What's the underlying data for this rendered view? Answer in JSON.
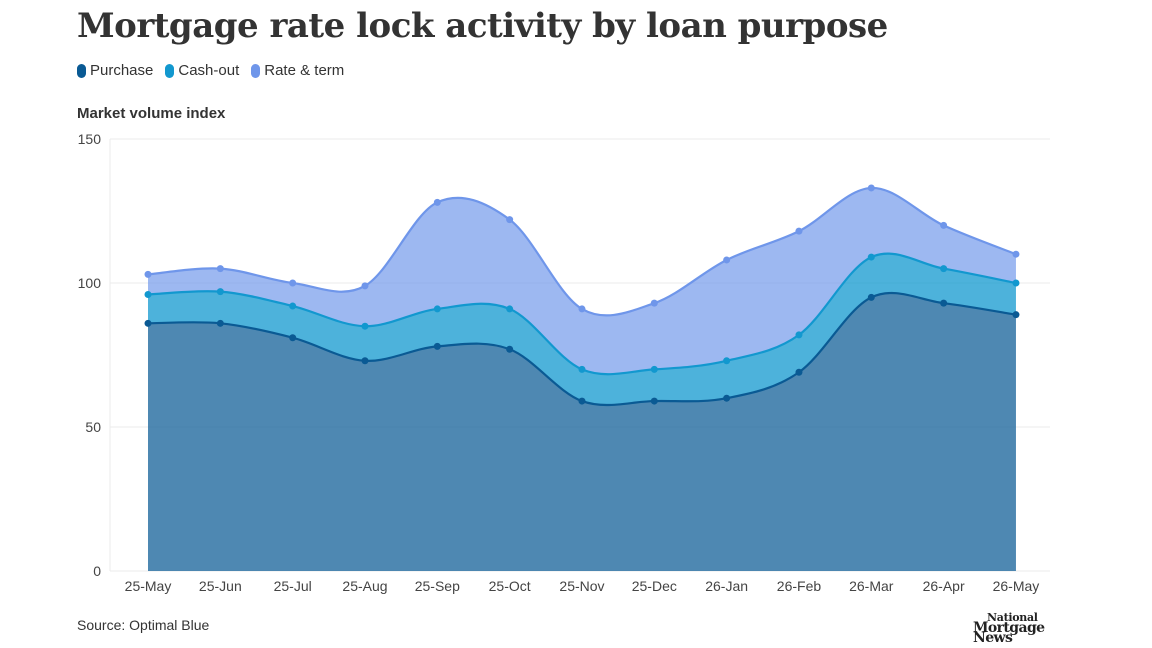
{
  "title": "Mortgage rate lock activity by loan purpose",
  "source": "Source: Optimal Blue",
  "logo": {
    "line1": "National",
    "line2": "Mortgage News"
  },
  "colors": {
    "purchase": "#0a5a94",
    "cashout": "#1298cf",
    "rateterm": "#6f96ea"
  },
  "chart_data": {
    "type": "area",
    "stacked": true,
    "ylabel": "Market volume index",
    "xlabel": "",
    "ylim": [
      0,
      150
    ],
    "yticks": [
      0,
      50,
      100,
      150
    ],
    "grid": true,
    "legend_position": "top-left",
    "categories": [
      "25-May",
      "25-Jun",
      "25-Jul",
      "25-Aug",
      "25-Sep",
      "25-Oct",
      "25-Nov",
      "25-Dec",
      "26-Jan",
      "26-Feb",
      "26-Mar",
      "26-Apr",
      "26-May"
    ],
    "series": [
      {
        "name": "Purchase",
        "values": [
          86,
          86,
          81,
          73,
          78,
          77,
          59,
          59,
          60,
          69,
          95,
          93,
          89
        ]
      },
      {
        "name": "Cash-out",
        "values": [
          10,
          11,
          11,
          12,
          13,
          14,
          11,
          11,
          13,
          13,
          14,
          12,
          11
        ]
      },
      {
        "name": "Rate & term",
        "values": [
          7,
          8,
          8,
          14,
          37,
          31,
          21,
          23,
          35,
          36,
          24,
          15,
          10
        ]
      }
    ]
  }
}
